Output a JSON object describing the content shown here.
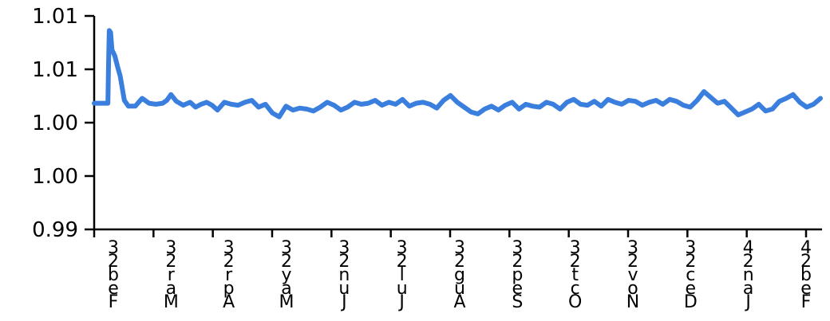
{
  "chart_data": {
    "type": "line",
    "title": "",
    "xlabel": "",
    "ylabel": "",
    "ylim": [
      0.99,
      1.012
    ],
    "yticks": [
      "0.99",
      "1.00",
      "1.00",
      "1.01",
      "1.01"
    ],
    "xticks": [
      {
        "lines": [
          "3",
          "2",
          "b",
          "e",
          "F"
        ]
      },
      {
        "lines": [
          "3",
          "2",
          "r",
          "a",
          "M"
        ]
      },
      {
        "lines": [
          "3",
          "2",
          "r",
          "p",
          "A"
        ]
      },
      {
        "lines": [
          "3",
          "2",
          "y",
          "a",
          "M"
        ]
      },
      {
        "lines": [
          "3",
          "2",
          "n",
          "u",
          "J"
        ]
      },
      {
        "lines": [
          "3",
          "2",
          "l",
          "u",
          "J"
        ]
      },
      {
        "lines": [
          "3",
          "2",
          "g",
          "u",
          "A"
        ]
      },
      {
        "lines": [
          "3",
          "2",
          "p",
          "e",
          "S"
        ]
      },
      {
        "lines": [
          "3",
          "2",
          "t",
          "c",
          "O"
        ]
      },
      {
        "lines": [
          "3",
          "2",
          "v",
          "o",
          "N"
        ]
      },
      {
        "lines": [
          "3",
          "2",
          "c",
          "e",
          "D"
        ]
      },
      {
        "lines": [
          "4",
          "2",
          "n",
          "a",
          "J"
        ]
      },
      {
        "lines": [
          "4",
          "2",
          "b",
          "e",
          "F"
        ]
      }
    ],
    "grid": false,
    "series": [
      {
        "color": "#3a7fde",
        "x": [
          0.0,
          0.5,
          0.75,
          0.9,
          1.0,
          1.05,
          1.1,
          1.2,
          1.3,
          1.5,
          1.7,
          1.9,
          2.2,
          2.5,
          3.0,
          3.5,
          4.0,
          4.5,
          5.0,
          5.3,
          5.6,
          6.0,
          6.5,
          7.0,
          7.4,
          7.8,
          8.2,
          8.6,
          9.0,
          9.5,
          10.0,
          10.5,
          11.0,
          11.5,
          12.0,
          12.5,
          13.0,
          13.5,
          14.0,
          14.5,
          15.0,
          15.5,
          16.0,
          16.5,
          17.0,
          17.5,
          18.0,
          18.5,
          19.0,
          19.5,
          20.0,
          20.5,
          21.0,
          21.5,
          22.0,
          22.5,
          23.0,
          23.5,
          24.0,
          24.5,
          25.0,
          25.5,
          26.0,
          26.5,
          27.0,
          27.5,
          28.0,
          28.5,
          29.0,
          29.5,
          30.0,
          30.5,
          31.0,
          31.5,
          32.0,
          32.5,
          33.0,
          33.5,
          34.0,
          34.5,
          35.0,
          35.5,
          36.0,
          36.5,
          37.0,
          37.5,
          38.0,
          38.5,
          39.0,
          39.5,
          40.0,
          40.5,
          41.0,
          41.5,
          42.0,
          42.5,
          43.0,
          43.5,
          44.0,
          44.5,
          45.0,
          45.5,
          46.0,
          46.5,
          47.0,
          47.5,
          48.0,
          48.5,
          49.0,
          49.5,
          50.0,
          50.5,
          51.0,
          51.5,
          52.0,
          52.5,
          53.0
        ],
        "values": [
          1.003,
          1.003,
          1.003,
          1.003,
          1.003,
          1.007,
          1.0105,
          1.0103,
          1.0085,
          1.0079,
          1.0068,
          1.0058,
          1.0033,
          1.0027,
          1.0027,
          1.0035,
          1.003,
          1.0029,
          1.003,
          1.0033,
          1.0039,
          1.0032,
          1.0028,
          1.0031,
          1.0026,
          1.0029,
          1.0031,
          1.0028,
          1.0023,
          1.0031,
          1.0029,
          1.0028,
          1.0031,
          1.0033,
          1.0026,
          1.0029,
          1.002,
          1.0016,
          1.0027,
          1.0023,
          1.0025,
          1.0024,
          1.0022,
          1.0026,
          1.0031,
          1.0028,
          1.0023,
          1.0026,
          1.0031,
          1.0029,
          1.003,
          1.0033,
          1.0028,
          1.0031,
          1.0029,
          1.0034,
          1.0027,
          1.003,
          1.0031,
          1.0029,
          1.0025,
          1.0033,
          1.0038,
          1.0031,
          1.0026,
          1.0021,
          1.0019,
          1.0024,
          1.0027,
          1.0023,
          1.0028,
          1.0031,
          1.0024,
          1.0029,
          1.0027,
          1.0026,
          1.0031,
          1.0029,
          1.0024,
          1.0031,
          1.0034,
          1.0029,
          1.0028,
          1.0032,
          1.0027,
          1.0034,
          1.0031,
          1.0029,
          1.0033,
          1.0032,
          1.0028,
          1.0031,
          1.0033,
          1.0029,
          1.0034,
          1.0032,
          1.0028,
          1.0026,
          1.0033,
          1.0042,
          1.0036,
          1.003,
          1.0032,
          1.0025,
          1.0018,
          1.0021,
          1.0024,
          1.0029,
          1.0022,
          1.0024,
          1.0032,
          1.0035,
          1.0039,
          1.0031,
          1.0026,
          1.0029,
          1.0035
        ]
      }
    ]
  }
}
